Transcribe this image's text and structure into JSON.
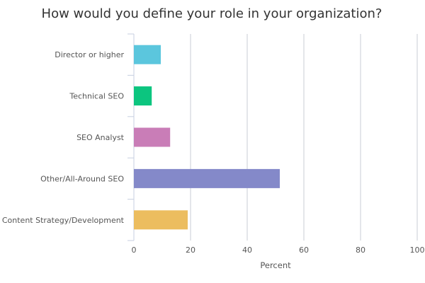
{
  "chart_data": {
    "type": "bar",
    "orientation": "horizontal",
    "title": "How would you define your role in your organization?",
    "xlabel": "Percent",
    "ylabel": "",
    "xlim": [
      0,
      100
    ],
    "x_ticks": [
      "0",
      "20",
      "40",
      "60",
      "80",
      "100"
    ],
    "grid": "vertical",
    "categories": [
      "Director or higher",
      "Technical SEO",
      "SEO Analyst",
      "Other/All-Around SEO",
      "Content Strategy/Development"
    ],
    "values": [
      9.5,
      6.3,
      12.8,
      51.5,
      19.0
    ],
    "colors": [
      "#5bc6dd",
      "#0cc57f",
      "#c97db7",
      "#8489c9",
      "#ecbd5f"
    ]
  }
}
